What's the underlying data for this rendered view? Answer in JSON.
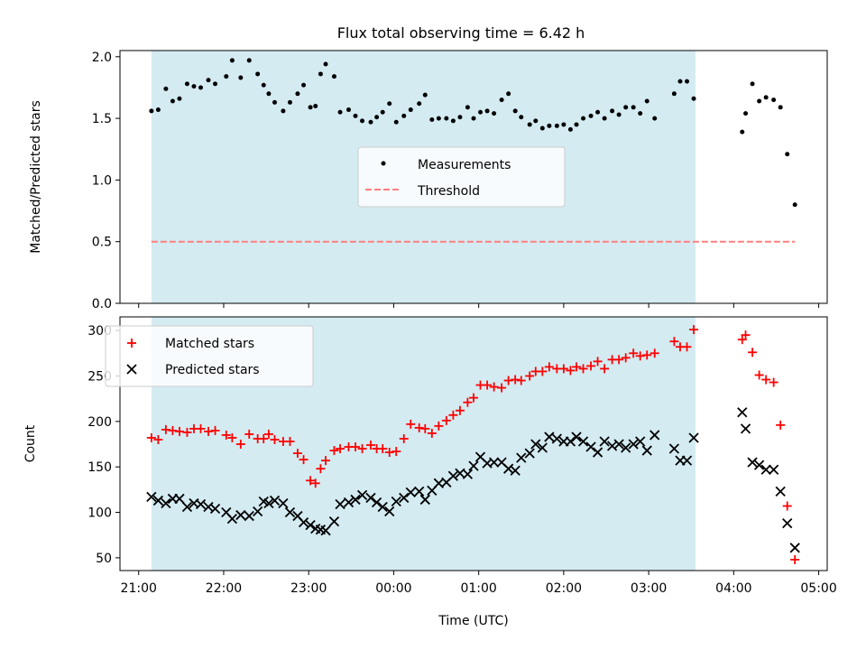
{
  "figure": {
    "title": "Flux total observing time = 6.42 h",
    "xlabel": "Time (UTC)",
    "x_ticks": [
      {
        "label": "21:00",
        "h": 21
      },
      {
        "label": "22:00",
        "h": 22
      },
      {
        "label": "23:00",
        "h": 23
      },
      {
        "label": "00:00",
        "h": 24
      },
      {
        "label": "01:00",
        "h": 25
      },
      {
        "label": "02:00",
        "h": 26
      },
      {
        "label": "03:00",
        "h": 27
      },
      {
        "label": "04:00",
        "h": 28
      },
      {
        "label": "05:00",
        "h": 29
      }
    ],
    "x_range": [
      20.78,
      29.1
    ],
    "shaded_span": [
      21.15,
      27.55
    ],
    "colors": {
      "shade": "#add8e6",
      "measurement": "#000000",
      "threshold": "#ff7f7f",
      "matched": "#ff0000",
      "predicted": "#000000"
    }
  },
  "chart_data": [
    {
      "type": "scatter",
      "ylabel": "Matched/Predicted stars",
      "ylim": [
        0,
        2.05
      ],
      "y_ticks": [
        "0.0",
        "0.5",
        "1.0",
        "1.5",
        "2.0"
      ],
      "legend_position": "center",
      "series": [
        {
          "name": "Measurements",
          "x": [
            21.15,
            21.23,
            21.32,
            21.4,
            21.48,
            21.57,
            21.65,
            21.73,
            21.82,
            21.9,
            22.03,
            22.1,
            22.2,
            22.3,
            22.4,
            22.47,
            22.53,
            22.6,
            22.7,
            22.78,
            22.87,
            22.94,
            23.02,
            23.08,
            23.14,
            23.2,
            23.3,
            23.37,
            23.47,
            23.55,
            23.63,
            23.73,
            23.8,
            23.87,
            23.95,
            24.03,
            24.12,
            24.2,
            24.3,
            24.37,
            24.45,
            24.53,
            24.62,
            24.7,
            24.78,
            24.87,
            24.94,
            25.02,
            25.1,
            25.18,
            25.27,
            25.35,
            25.43,
            25.5,
            25.6,
            25.67,
            25.75,
            25.83,
            25.92,
            26.0,
            26.08,
            26.15,
            26.23,
            26.32,
            26.4,
            26.48,
            26.57,
            26.65,
            26.73,
            26.82,
            26.9,
            26.98,
            27.07,
            27.3,
            27.37,
            27.45,
            27.53,
            28.1,
            28.14,
            28.22,
            28.3,
            28.38,
            28.47,
            28.55,
            28.63,
            28.72
          ],
          "y": [
            1.56,
            1.57,
            1.74,
            1.64,
            1.66,
            1.78,
            1.76,
            1.75,
            1.81,
            1.78,
            1.84,
            1.97,
            1.83,
            1.97,
            1.86,
            1.77,
            1.7,
            1.63,
            1.56,
            1.63,
            1.7,
            1.77,
            1.59,
            1.6,
            1.86,
            1.94,
            1.84,
            1.55,
            1.57,
            1.52,
            1.48,
            1.47,
            1.51,
            1.55,
            1.62,
            1.47,
            1.52,
            1.57,
            1.62,
            1.69,
            1.49,
            1.5,
            1.5,
            1.48,
            1.51,
            1.59,
            1.5,
            1.55,
            1.56,
            1.54,
            1.65,
            1.7,
            1.56,
            1.51,
            1.45,
            1.48,
            1.42,
            1.44,
            1.44,
            1.45,
            1.41,
            1.45,
            1.5,
            1.52,
            1.55,
            1.5,
            1.56,
            1.53,
            1.59,
            1.59,
            1.54,
            1.64,
            1.5,
            1.7,
            1.8,
            1.8,
            1.66,
            1.39,
            1.54,
            1.78,
            1.64,
            1.67,
            1.65,
            1.59,
            1.21,
            0.8
          ]
        },
        {
          "name": "Threshold",
          "x": [
            21.15,
            28.72
          ],
          "y": [
            0.5,
            0.5
          ]
        }
      ]
    },
    {
      "type": "scatter",
      "ylabel": "Count",
      "ylim": [
        36,
        315
      ],
      "y_ticks": [
        "50",
        "100",
        "150",
        "200",
        "250",
        "300"
      ],
      "legend_position": "top-left",
      "series": [
        {
          "name": "Matched stars",
          "x": [
            21.15,
            21.23,
            21.32,
            21.4,
            21.48,
            21.57,
            21.65,
            21.73,
            21.82,
            21.9,
            22.03,
            22.1,
            22.2,
            22.3,
            22.4,
            22.47,
            22.53,
            22.6,
            22.7,
            22.78,
            22.87,
            22.94,
            23.02,
            23.08,
            23.14,
            23.2,
            23.3,
            23.37,
            23.47,
            23.55,
            23.63,
            23.73,
            23.8,
            23.87,
            23.95,
            24.03,
            24.12,
            24.2,
            24.3,
            24.37,
            24.45,
            24.53,
            24.62,
            24.7,
            24.78,
            24.87,
            24.94,
            25.02,
            25.1,
            25.18,
            25.27,
            25.35,
            25.43,
            25.5,
            25.6,
            25.67,
            25.75,
            25.83,
            25.92,
            26.0,
            26.08,
            26.15,
            26.23,
            26.32,
            26.4,
            26.48,
            26.57,
            26.65,
            26.73,
            26.82,
            26.9,
            26.98,
            27.07,
            27.3,
            27.37,
            27.45,
            27.53,
            28.1,
            28.14,
            28.22,
            28.3,
            28.38,
            28.47,
            28.55,
            28.63,
            28.72
          ],
          "y": [
            182,
            180,
            191,
            190,
            189,
            188,
            192,
            192,
            189,
            190,
            185,
            182,
            175,
            186,
            181,
            181,
            186,
            180,
            178,
            178,
            165,
            158,
            135,
            132,
            148,
            157,
            168,
            170,
            172,
            172,
            170,
            174,
            170,
            170,
            166,
            167,
            181,
            197,
            193,
            192,
            187,
            195,
            201,
            207,
            212,
            221,
            226,
            240,
            240,
            238,
            237,
            245,
            246,
            245,
            250,
            255,
            255,
            260,
            258,
            258,
            256,
            260,
            258,
            261,
            266,
            258,
            268,
            268,
            270,
            275,
            272,
            273,
            275,
            288,
            282,
            282,
            301,
            290,
            295,
            276,
            251,
            246,
            243,
            196,
            107,
            48
          ]
        },
        {
          "name": "Predicted stars",
          "x": [
            21.15,
            21.23,
            21.32,
            21.4,
            21.48,
            21.57,
            21.65,
            21.73,
            21.82,
            21.9,
            22.03,
            22.1,
            22.2,
            22.3,
            22.4,
            22.47,
            22.53,
            22.6,
            22.7,
            22.78,
            22.87,
            22.94,
            23.02,
            23.08,
            23.14,
            23.2,
            23.3,
            23.37,
            23.47,
            23.55,
            23.63,
            23.73,
            23.8,
            23.87,
            23.95,
            24.03,
            24.12,
            24.2,
            24.3,
            24.37,
            24.45,
            24.53,
            24.62,
            24.7,
            24.78,
            24.87,
            24.94,
            25.02,
            25.1,
            25.18,
            25.27,
            25.35,
            25.43,
            25.5,
            25.6,
            25.67,
            25.75,
            25.83,
            25.92,
            26.0,
            26.08,
            26.15,
            26.23,
            26.32,
            26.4,
            26.48,
            26.57,
            26.65,
            26.73,
            26.82,
            26.9,
            26.98,
            27.07,
            27.3,
            27.37,
            27.45,
            27.53,
            28.1,
            28.14,
            28.22,
            28.3,
            28.38,
            28.47,
            28.55,
            28.63,
            28.72
          ],
          "y": [
            117,
            113,
            110,
            115,
            115,
            106,
            110,
            109,
            106,
            104,
            100,
            93,
            97,
            96,
            101,
            112,
            110,
            113,
            110,
            100,
            96,
            89,
            86,
            82,
            81,
            80,
            90,
            109,
            111,
            114,
            119,
            116,
            111,
            106,
            101,
            112,
            116,
            122,
            123,
            114,
            124,
            132,
            133,
            140,
            143,
            142,
            151,
            161,
            154,
            155,
            155,
            148,
            146,
            160,
            165,
            175,
            171,
            183,
            181,
            178,
            178,
            183,
            178,
            172,
            166,
            178,
            173,
            175,
            171,
            175,
            178,
            168,
            185,
            170,
            157,
            157,
            182,
            210,
            192,
            155,
            152,
            147,
            147,
            123,
            88,
            61
          ]
        }
      ]
    }
  ]
}
